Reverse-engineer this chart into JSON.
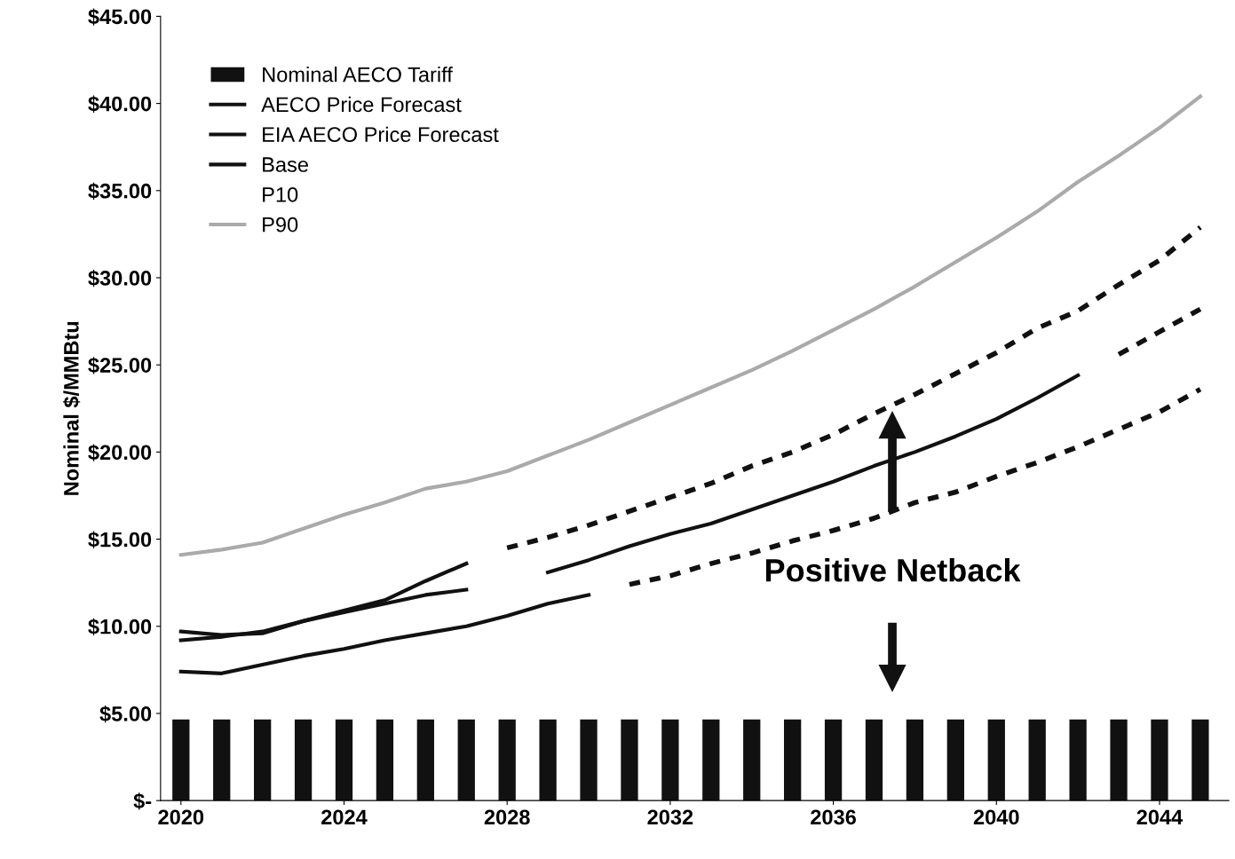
{
  "chart_data": {
    "type": "line",
    "ylabel": "Nominal $/MMBtu",
    "xlim": [
      2019.5,
      2045.7
    ],
    "xticks": [
      2020,
      2024,
      2028,
      2032,
      2036,
      2040,
      2044
    ],
    "ylim": [
      0,
      45
    ],
    "yticks": [
      {
        "value": 0,
        "label": "$-"
      },
      {
        "value": 5,
        "label": "$5.00"
      },
      {
        "value": 10,
        "label": "$10.00"
      },
      {
        "value": 15,
        "label": "$15.00"
      },
      {
        "value": 20,
        "label": "$20.00"
      },
      {
        "value": 25,
        "label": "$25.00"
      },
      {
        "value": 30,
        "label": "$30.00"
      },
      {
        "value": 35,
        "label": "$35.00"
      },
      {
        "value": 40,
        "label": "$40.00"
      },
      {
        "value": 45,
        "label": "$45.00"
      }
    ],
    "grid": false,
    "legend": "top left",
    "annotations": [
      "Positive Netback"
    ],
    "series": [
      {
        "name": "Nominal AECO Tariff",
        "type": "bar",
        "color": "#111111",
        "x": [
          2020,
          2021,
          2022,
          2023,
          2024,
          2025,
          2026,
          2027,
          2028,
          2029,
          2030,
          2031,
          2032,
          2033,
          2034,
          2035,
          2036,
          2037,
          2038,
          2039,
          2040,
          2041,
          2042,
          2043,
          2044,
          2045
        ],
        "values": [
          4.65,
          4.65,
          4.65,
          4.65,
          4.65,
          4.65,
          4.65,
          4.65,
          4.65,
          4.65,
          4.65,
          4.65,
          4.65,
          4.65,
          4.65,
          4.65,
          4.65,
          4.65,
          4.65,
          4.65,
          4.65,
          4.65,
          4.65,
          4.65,
          4.65,
          4.65
        ]
      },
      {
        "name": "AECO Price Forecast",
        "color": "#111111",
        "x": [
          2020,
          2021,
          2022,
          2023,
          2024,
          2025,
          2026,
          2027
        ],
        "values": [
          9.7,
          9.5,
          9.6,
          10.3,
          10.9,
          11.5,
          12.6,
          13.6
        ]
      },
      {
        "name": "EIA AECO Price Forecast",
        "color": "#111111",
        "x": [
          2020,
          2021,
          2022,
          2023,
          2024,
          2025,
          2026,
          2027,
          2028,
          2029,
          2030,
          2031,
          2032,
          2033,
          2034,
          2035,
          2036,
          2037,
          2038,
          2039,
          2040,
          2041,
          2042
        ],
        "values": [
          9.2,
          9.4,
          9.7,
          10.3,
          10.8,
          11.3,
          11.8,
          12.1,
          null,
          13.1,
          13.8,
          14.6,
          15.3,
          15.9,
          16.7,
          17.5,
          18.3,
          19.2,
          20.0,
          20.9,
          21.9,
          23.1,
          24.4
        ]
      },
      {
        "name": "Base",
        "color": "#111111",
        "x": [
          2020,
          2021,
          2022,
          2023,
          2024,
          2025,
          2026,
          2027,
          2028,
          2029,
          2030
        ],
        "values": [
          7.4,
          7.3,
          7.8,
          8.3,
          8.7,
          9.2,
          9.6,
          10.0,
          10.6,
          11.3,
          11.8
        ]
      },
      {
        "name": "P10"
      },
      {
        "name": "P90",
        "color": "#aaaaaa",
        "x": [
          2020,
          2021,
          2022,
          2023,
          2024,
          2025,
          2026,
          2027,
          2028,
          2029,
          2030,
          2031,
          2032,
          2033,
          2034,
          2035,
          2036,
          2037,
          2038,
          2039,
          2040,
          2041,
          2042,
          2043,
          2044,
          2045
        ],
        "values": [
          14.1,
          14.4,
          14.8,
          15.6,
          16.4,
          17.1,
          17.9,
          18.3,
          18.9,
          19.8,
          20.7,
          21.7,
          22.7,
          23.7,
          24.7,
          25.8,
          27.0,
          28.2,
          29.5,
          30.9,
          32.3,
          33.8,
          35.5,
          37.0,
          38.6,
          40.4
        ]
      },
      {
        "color": "#111111",
        "line_style": "dashed",
        "x": [
          2028,
          2029,
          2030,
          2031,
          2032,
          2033,
          2034,
          2035,
          2036,
          2037,
          2038,
          2039,
          2040,
          2041,
          2042,
          2043,
          2044,
          2045
        ],
        "values": [
          14.5,
          15.1,
          15.8,
          16.6,
          17.4,
          18.2,
          19.2,
          20.0,
          21.0,
          22.2,
          23.3,
          24.5,
          25.7,
          27.1,
          28.1,
          29.6,
          31.0,
          32.9
        ]
      },
      {
        "color": "#111111",
        "line_style": "dashed",
        "x": [
          2043,
          2044,
          2045
        ],
        "values": [
          25.6,
          26.9,
          28.2
        ]
      },
      {
        "color": "#111111",
        "line_style": "dashed",
        "x": [
          2031,
          2032,
          2033,
          2034,
          2035,
          2036,
          2037,
          2038,
          2039,
          2040,
          2041,
          2042,
          2043,
          2044,
          2045
        ],
        "values": [
          12.4,
          12.9,
          13.6,
          14.2,
          14.9,
          15.5,
          16.2,
          17.1,
          17.7,
          18.6,
          19.4,
          20.3,
          21.3,
          22.3,
          23.6
        ]
      }
    ]
  }
}
